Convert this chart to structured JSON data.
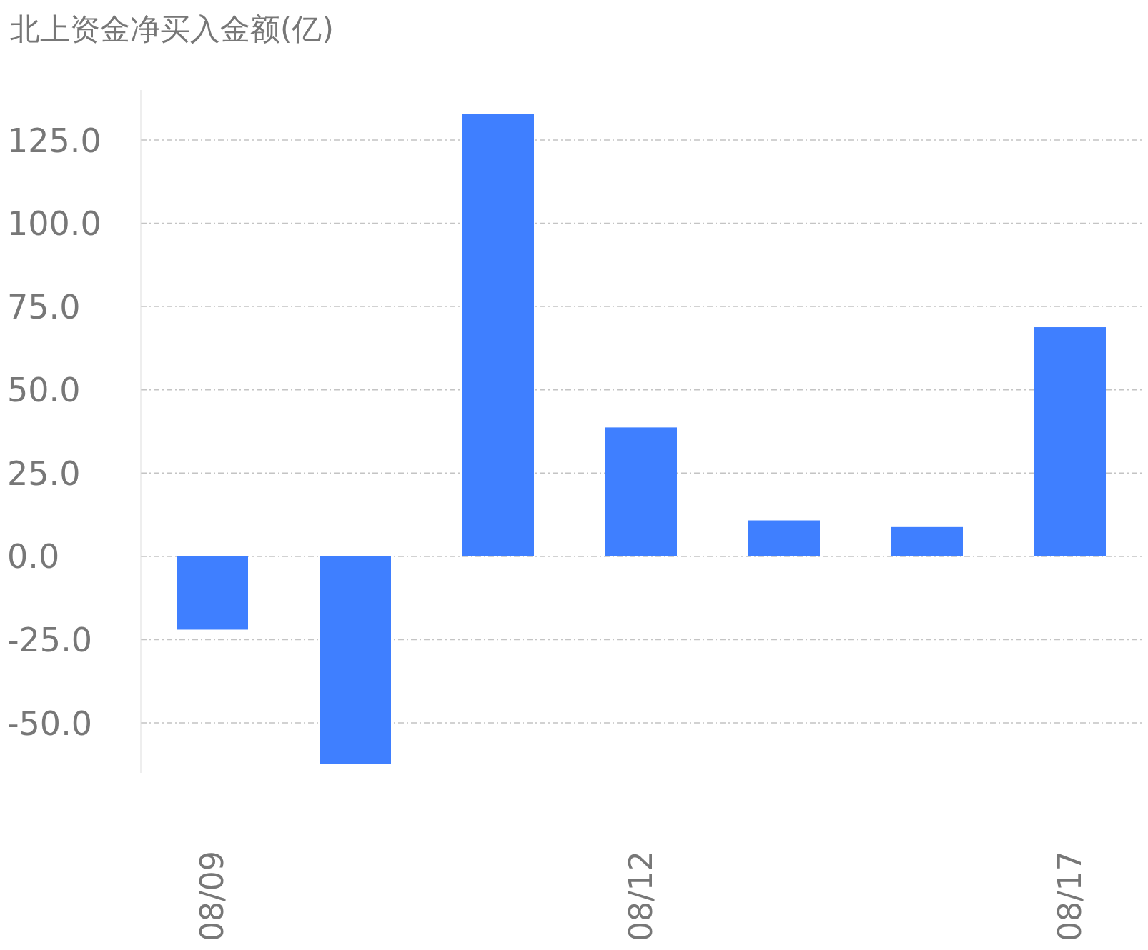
{
  "chart_data": {
    "type": "bar",
    "title": "北上资金净买入金额(亿)",
    "categories": [
      "08/09",
      null,
      null,
      "08/12",
      null,
      null,
      "08/17"
    ],
    "values": [
      -22.0,
      -62.4,
      132.9,
      38.7,
      10.8,
      8.8,
      68.8
    ],
    "color": "#3f7fff",
    "ylim": [
      -65,
      140
    ],
    "yticks": [
      {
        "value": -50,
        "label": "-50.0"
      },
      {
        "value": -25,
        "label": "-25.0"
      },
      {
        "value": 0,
        "label": "0.0"
      },
      {
        "value": 25,
        "label": "25.0"
      },
      {
        "value": 50,
        "label": "50.0"
      },
      {
        "value": 75,
        "label": "75.0"
      },
      {
        "value": 100,
        "label": "100.0"
      },
      {
        "value": 125,
        "label": "125.0"
      }
    ],
    "grid": "y"
  }
}
